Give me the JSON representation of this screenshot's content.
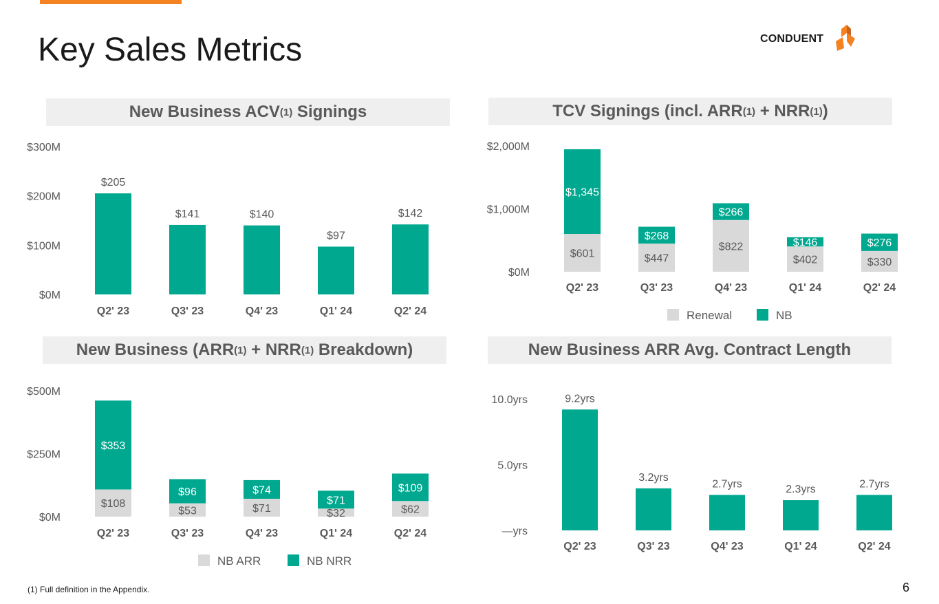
{
  "page": {
    "title": "Key Sales Metrics",
    "logo_text": "CONDUENT",
    "footnote": "(1) Full definition in the Appendix.",
    "page_number": "6"
  },
  "colors": {
    "teal": "#00a88f",
    "gray": "#d9d9d9",
    "accent": "#f58220",
    "label_dark": "#595959"
  },
  "panels": {
    "acv": {
      "title": "New Business ACV",
      "sup": "(1)",
      "title_end": " Signings"
    },
    "tcv": {
      "title": "TCV Signings (incl. ARR",
      "sup1": "(1)",
      "mid": " + NRR",
      "sup2": "(1)",
      "end": ")"
    },
    "arr_nrr": {
      "title": "New Business (ARR",
      "sup1": "(1)",
      "mid": " + NRR",
      "sup2": "(1)",
      "end": " Breakdown)"
    },
    "length": {
      "title": "New Business ARR Avg. Contract Length"
    }
  },
  "chart_data": [
    {
      "id": "acv",
      "type": "bar",
      "title": "New Business ACV(1) Signings",
      "categories": [
        "Q2' 23",
        "Q3' 23",
        "Q4' 23",
        "Q1' 24",
        "Q2' 24"
      ],
      "values": [
        205,
        141,
        140,
        97,
        142
      ],
      "value_labels": [
        "$205",
        "$141",
        "$140",
        "$97",
        "$142"
      ],
      "ylim": [
        0,
        300
      ],
      "yticks": [
        0,
        100,
        200,
        300
      ],
      "ytick_labels": [
        "$0M",
        "$100M",
        "$200M",
        "$300M"
      ]
    },
    {
      "id": "tcv",
      "type": "bar",
      "stacked": true,
      "title": "TCV Signings (incl. ARR(1) + NRR(1))",
      "categories": [
        "Q2' 23",
        "Q3' 23",
        "Q4' 23",
        "Q1' 24",
        "Q2' 24"
      ],
      "series": [
        {
          "name": "Renewal",
          "color": "gray",
          "values": [
            601,
            447,
            822,
            402,
            330
          ],
          "labels": [
            "$601",
            "$447",
            "$822",
            "$402",
            "$330"
          ]
        },
        {
          "name": "NB",
          "color": "teal",
          "values": [
            1345,
            268,
            266,
            146,
            276
          ],
          "labels": [
            "$1,345",
            "$268",
            "$266",
            "$146",
            "$276"
          ]
        }
      ],
      "ylim": [
        0,
        2000
      ],
      "yticks": [
        0,
        1000,
        2000
      ],
      "ytick_labels": [
        "$0M",
        "$1,000M",
        "$2,000M"
      ],
      "legend": "bottom"
    },
    {
      "id": "arr_nrr",
      "type": "bar",
      "stacked": true,
      "title": "New Business (ARR(1) + NRR(1) Breakdown)",
      "categories": [
        "Q2' 23",
        "Q3' 23",
        "Q4' 23",
        "Q1' 24",
        "Q2' 24"
      ],
      "series": [
        {
          "name": "NB ARR",
          "color": "gray",
          "values": [
            108,
            53,
            71,
            32,
            62
          ],
          "labels": [
            "$108",
            "$53",
            "$71",
            "$32",
            "$62"
          ]
        },
        {
          "name": "NB NRR",
          "color": "teal",
          "values": [
            353,
            96,
            74,
            71,
            109
          ],
          "labels": [
            "$353",
            "$96",
            "$74",
            "$71",
            "$109"
          ]
        }
      ],
      "ylim": [
        0,
        500
      ],
      "yticks": [
        0,
        250,
        500
      ],
      "ytick_labels": [
        "$0M",
        "$250M",
        "$500M"
      ],
      "legend": "bottom"
    },
    {
      "id": "length",
      "type": "bar",
      "title": "New Business ARR Avg. Contract Length",
      "categories": [
        "Q2' 23",
        "Q3' 23",
        "Q4' 23",
        "Q1' 24",
        "Q2' 24"
      ],
      "values": [
        9.2,
        3.2,
        2.7,
        2.3,
        2.7
      ],
      "value_labels": [
        "9.2yrs",
        "3.2yrs",
        "2.7yrs",
        "2.3yrs",
        "2.7yrs"
      ],
      "ylim": [
        0,
        10
      ],
      "yticks": [
        0,
        5,
        10
      ],
      "ytick_labels": [
        "—yrs",
        "5.0yrs",
        "10.0yrs"
      ]
    }
  ]
}
